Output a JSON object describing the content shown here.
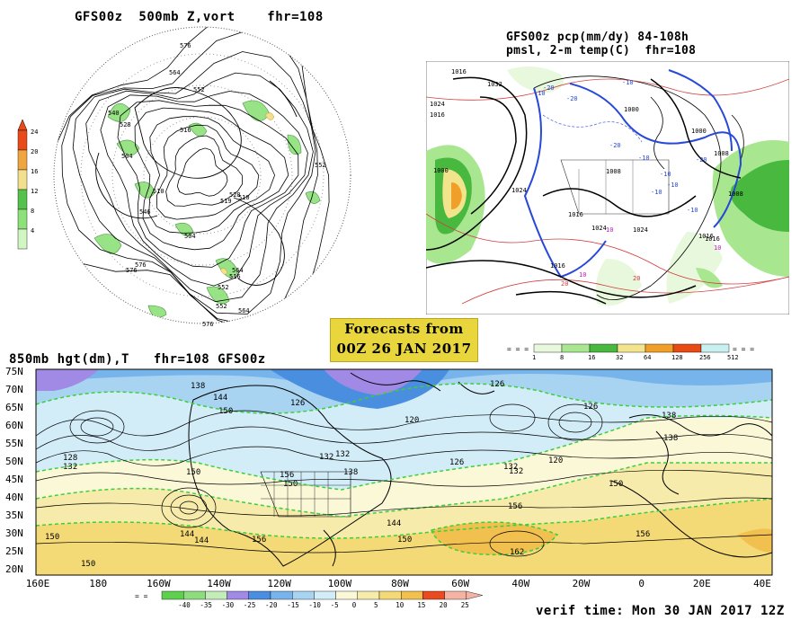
{
  "vort_panel": {
    "title": "GFS00z  500mb Z,vort    fhr=108",
    "colorbar_labels": [
      "24",
      "20",
      "16",
      "12",
      "8",
      "4"
    ],
    "colorbar_colors": [
      "#e84a1a",
      "#f0a640",
      "#f2e08e",
      "#56c24e",
      "#8ee07a",
      "#d2f5c4"
    ],
    "contour_labels": [
      "576",
      "564",
      "552",
      "540",
      "528",
      "516",
      "504",
      "552",
      "576",
      "546",
      "510",
      "528",
      "519",
      "510",
      "504",
      "564",
      "564",
      "576",
      "552",
      "516",
      "552",
      "576"
    ]
  },
  "pcp_panel": {
    "title_line1": "GFS00z pcp(mm/dy) 84-108h",
    "title_line2": "pmsl, 2-m temp(C)  fhr=108",
    "colorbar_labels": [
      "1",
      "8",
      "16",
      "32",
      "64",
      "128",
      "256",
      "512"
    ],
    "colorbar_colors": [
      "#e8f8dc",
      "#a8e690",
      "#48b83e",
      "#f2e48c",
      "#f0a028",
      "#e84a14",
      "#c8f0f0"
    ],
    "pressure_labels": [
      "1016",
      "1032",
      "1024",
      "1016",
      "1000",
      "1024",
      "1008",
      "1024",
      "1016",
      "1000",
      "1008",
      "1008",
      "1016",
      "1016",
      "1024",
      "1016",
      "1000"
    ],
    "temp_labels": [
      "-10",
      "-20",
      "-20",
      "-10",
      "-20",
      "-10",
      "-10",
      "-10",
      "-20",
      "-10",
      "-10",
      "20",
      "10",
      "20",
      "10",
      "10"
    ]
  },
  "banner": {
    "line1": "Forecasts from",
    "line2": "00Z 26 JAN 2017"
  },
  "hgt_panel": {
    "title": "850mb hgt(dm),T   fhr=108 GFS00z",
    "lat_labels": [
      "75N",
      "70N",
      "65N",
      "60N",
      "55N",
      "50N",
      "45N",
      "40N",
      "35N",
      "30N",
      "25N",
      "20N"
    ],
    "lon_labels": [
      "160E",
      "180",
      "160W",
      "140W",
      "120W",
      "100W",
      "80W",
      "60W",
      "40W",
      "20W",
      "0",
      "20E",
      "40E"
    ],
    "contour_labels": [
      "138",
      "144",
      "150",
      "126",
      "132",
      "126",
      "120",
      "126",
      "132",
      "120",
      "128",
      "132",
      "150",
      "132",
      "138",
      "126",
      "138",
      "132",
      "150",
      "138",
      "144",
      "156",
      "150",
      "150",
      "156",
      "156",
      "144",
      "162",
      "144",
      "156",
      "150",
      "150"
    ],
    "colorbar_labels": [
      "-40",
      "-35",
      "-30",
      "-25",
      "-20",
      "-15",
      "-10",
      "-5",
      "0",
      "5",
      "10",
      "15",
      "20",
      "25"
    ],
    "colorbar_colors": [
      "#5fcf4e",
      "#8edc80",
      "#c4ecb8",
      "#a08ae6",
      "#4a8ee0",
      "#78b4ec",
      "#a8d4f2",
      "#d2ecf8",
      "#fbf8d8",
      "#f6ebaa",
      "#f4da76",
      "#f2c04e",
      "#ea4a20",
      "#f4b4a4"
    ]
  },
  "verif": "verif time: Mon 30 JAN 2017 12Z"
}
